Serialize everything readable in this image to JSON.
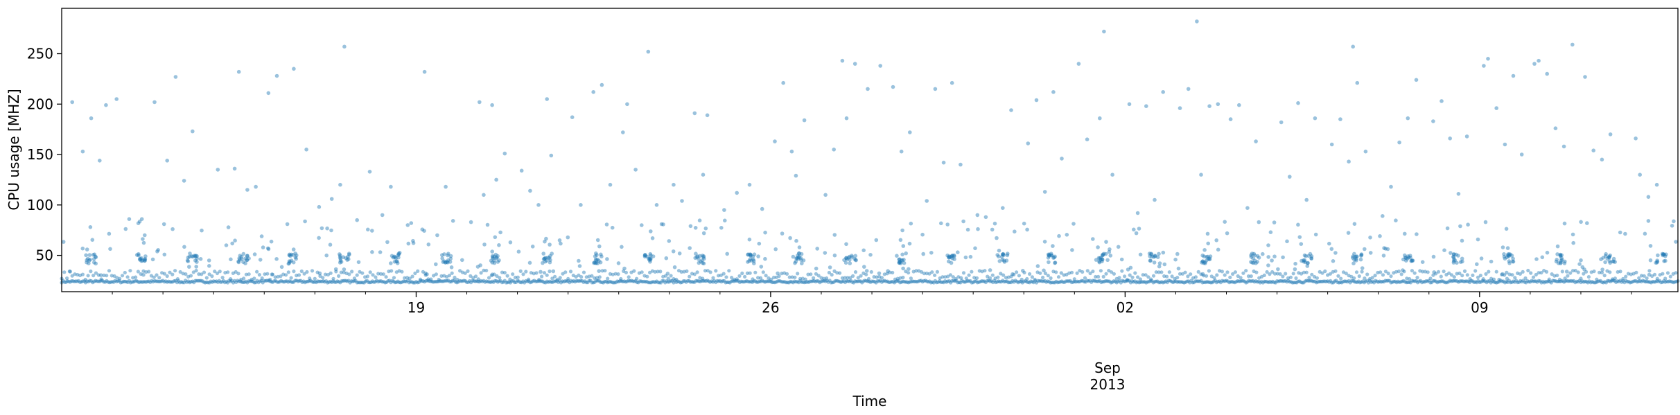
{
  "chart_data": {
    "type": "scatter",
    "title": "",
    "xlabel": "Time",
    "ylabel": "CPU usage [MHZ]",
    "xlim": [
      "2013-08-12T00:00",
      "2013-09-12T22:00"
    ],
    "ylim": [
      14,
      295
    ],
    "grid": false,
    "legend": "none",
    "yticks": [
      50,
      100,
      150,
      200,
      250
    ],
    "xticks_major": [
      {
        "date": "2013-08-19",
        "label": "19"
      },
      {
        "date": "2013-08-26",
        "label": "26"
      },
      {
        "date": "2013-09-02",
        "label": "02"
      },
      {
        "date": "2013-09-09",
        "label": "09"
      }
    ],
    "xaxis_secondary_label": [
      "Sep",
      "2013"
    ],
    "series": [
      {
        "color": "#1f77b4",
        "marker_alpha": 0.45,
        "baseline_value": 24,
        "daily_cluster_value": 47,
        "points": [
          [
            "2013-08-12T05:00",
            202
          ],
          [
            "2013-08-12T10:00",
            153
          ],
          [
            "2013-08-12T14:00",
            186
          ],
          [
            "2013-08-12T18:00",
            144
          ],
          [
            "2013-08-12T21:00",
            199
          ],
          [
            "2013-08-13T02:00",
            205
          ],
          [
            "2013-08-13T08:00",
            86
          ],
          [
            "2013-08-13T14:00",
            86
          ],
          [
            "2013-08-13T20:00",
            202
          ],
          [
            "2013-08-14T02:00",
            144
          ],
          [
            "2013-08-14T06:00",
            227
          ],
          [
            "2013-08-14T10:00",
            124
          ],
          [
            "2013-08-14T14:00",
            173
          ],
          [
            "2013-08-15T02:00",
            135
          ],
          [
            "2013-08-15T06:00",
            60
          ],
          [
            "2013-08-15T10:00",
            136
          ],
          [
            "2013-08-15T12:00",
            232
          ],
          [
            "2013-08-15T16:00",
            115
          ],
          [
            "2013-08-15T20:00",
            118
          ],
          [
            "2013-08-16T02:00",
            211
          ],
          [
            "2013-08-16T06:00",
            228
          ],
          [
            "2013-08-16T14:00",
            235
          ],
          [
            "2013-08-16T20:00",
            155
          ],
          [
            "2013-08-17T02:00",
            98
          ],
          [
            "2013-08-17T08:00",
            106
          ],
          [
            "2013-08-17T12:00",
            120
          ],
          [
            "2013-08-17T14:00",
            257
          ],
          [
            "2013-08-17T20:00",
            85
          ],
          [
            "2013-08-18T02:00",
            133
          ],
          [
            "2013-08-18T08:00",
            90
          ],
          [
            "2013-08-18T12:00",
            118
          ],
          [
            "2013-08-18T20:00",
            80
          ],
          [
            "2013-08-19T04:00",
            232
          ],
          [
            "2013-08-19T10:00",
            70
          ],
          [
            "2013-08-19T14:00",
            118
          ],
          [
            "2013-08-20T02:00",
            83
          ],
          [
            "2013-08-20T06:00",
            202
          ],
          [
            "2013-08-20T08:00",
            110
          ],
          [
            "2013-08-20T12:00",
            199
          ],
          [
            "2013-08-20T14:00",
            125
          ],
          [
            "2013-08-20T18:00",
            151
          ],
          [
            "2013-08-21T02:00",
            134
          ],
          [
            "2013-08-21T06:00",
            114
          ],
          [
            "2013-08-21T10:00",
            100
          ],
          [
            "2013-08-21T14:00",
            205
          ],
          [
            "2013-08-21T16:00",
            149
          ],
          [
            "2013-08-21T20:00",
            65
          ],
          [
            "2013-08-22T02:00",
            187
          ],
          [
            "2013-08-22T06:00",
            100
          ],
          [
            "2013-08-22T12:00",
            212
          ],
          [
            "2013-08-22T16:00",
            219
          ],
          [
            "2013-08-22T20:00",
            120
          ],
          [
            "2013-08-23T02:00",
            172
          ],
          [
            "2013-08-23T04:00",
            200
          ],
          [
            "2013-08-23T08:00",
            135
          ],
          [
            "2013-08-23T14:00",
            252
          ],
          [
            "2013-08-23T18:00",
            100
          ],
          [
            "2013-08-24T02:00",
            120
          ],
          [
            "2013-08-24T06:00",
            104
          ],
          [
            "2013-08-24T12:00",
            191
          ],
          [
            "2013-08-24T16:00",
            130
          ],
          [
            "2013-08-24T18:00",
            189
          ],
          [
            "2013-08-25T02:00",
            95
          ],
          [
            "2013-08-25T08:00",
            112
          ],
          [
            "2013-08-25T14:00",
            120
          ],
          [
            "2013-08-25T20:00",
            96
          ],
          [
            "2013-08-26T02:00",
            163
          ],
          [
            "2013-08-26T06:00",
            221
          ],
          [
            "2013-08-26T10:00",
            153
          ],
          [
            "2013-08-26T12:00",
            129
          ],
          [
            "2013-08-26T16:00",
            184
          ],
          [
            "2013-08-27T02:00",
            110
          ],
          [
            "2013-08-27T06:00",
            155
          ],
          [
            "2013-08-27T10:00",
            243
          ],
          [
            "2013-08-27T12:00",
            186
          ],
          [
            "2013-08-27T16:00",
            240
          ],
          [
            "2013-08-27T22:00",
            215
          ],
          [
            "2013-08-28T04:00",
            238
          ],
          [
            "2013-08-28T10:00",
            217
          ],
          [
            "2013-08-28T14:00",
            153
          ],
          [
            "2013-08-28T18:00",
            172
          ],
          [
            "2013-08-29T02:00",
            104
          ],
          [
            "2013-08-29T06:00",
            215
          ],
          [
            "2013-08-29T10:00",
            142
          ],
          [
            "2013-08-29T14:00",
            221
          ],
          [
            "2013-08-29T18:00",
            140
          ],
          [
            "2013-08-30T02:00",
            90
          ],
          [
            "2013-08-30T06:00",
            88
          ],
          [
            "2013-08-30T14:00",
            97
          ],
          [
            "2013-08-30T18:00",
            194
          ],
          [
            "2013-08-31T02:00",
            161
          ],
          [
            "2013-08-31T06:00",
            204
          ],
          [
            "2013-08-31T10:00",
            113
          ],
          [
            "2013-08-31T14:00",
            212
          ],
          [
            "2013-08-31T18:00",
            146
          ],
          [
            "2013-09-01T02:00",
            240
          ],
          [
            "2013-09-01T06:00",
            165
          ],
          [
            "2013-09-01T12:00",
            186
          ],
          [
            "2013-09-01T14:00",
            272
          ],
          [
            "2013-09-01T18:00",
            130
          ],
          [
            "2013-09-02T02:00",
            200
          ],
          [
            "2013-09-02T06:00",
            92
          ],
          [
            "2013-09-02T10:00",
            198
          ],
          [
            "2013-09-02T14:00",
            105
          ],
          [
            "2013-09-02T18:00",
            212
          ],
          [
            "2013-09-03T02:00",
            196
          ],
          [
            "2013-09-03T06:00",
            215
          ],
          [
            "2013-09-03T10:00",
            282
          ],
          [
            "2013-09-03T12:00",
            130
          ],
          [
            "2013-09-03T16:00",
            198
          ],
          [
            "2013-09-03T20:00",
            200
          ],
          [
            "2013-09-04T02:00",
            185
          ],
          [
            "2013-09-04T06:00",
            199
          ],
          [
            "2013-09-04T10:00",
            97
          ],
          [
            "2013-09-04T14:00",
            163
          ],
          [
            "2013-09-05T02:00",
            182
          ],
          [
            "2013-09-05T06:00",
            128
          ],
          [
            "2013-09-05T10:00",
            201
          ],
          [
            "2013-09-05T14:00",
            105
          ],
          [
            "2013-09-05T18:00",
            186
          ],
          [
            "2013-09-06T02:00",
            160
          ],
          [
            "2013-09-06T06:00",
            185
          ],
          [
            "2013-09-06T10:00",
            143
          ],
          [
            "2013-09-06T12:00",
            257
          ],
          [
            "2013-09-06T14:00",
            221
          ],
          [
            "2013-09-06T18:00",
            153
          ],
          [
            "2013-09-07T02:00",
            89
          ],
          [
            "2013-09-07T06:00",
            118
          ],
          [
            "2013-09-07T10:00",
            162
          ],
          [
            "2013-09-07T14:00",
            186
          ],
          [
            "2013-09-07T18:00",
            224
          ],
          [
            "2013-09-08T02:00",
            183
          ],
          [
            "2013-09-08T06:00",
            203
          ],
          [
            "2013-09-08T10:00",
            166
          ],
          [
            "2013-09-08T14:00",
            111
          ],
          [
            "2013-09-08T18:00",
            168
          ],
          [
            "2013-09-09T02:00",
            238
          ],
          [
            "2013-09-09T04:00",
            245
          ],
          [
            "2013-09-09T08:00",
            196
          ],
          [
            "2013-09-09T12:00",
            160
          ],
          [
            "2013-09-09T16:00",
            228
          ],
          [
            "2013-09-09T20:00",
            150
          ],
          [
            "2013-09-10T02:00",
            240
          ],
          [
            "2013-09-10T04:00",
            243
          ],
          [
            "2013-09-10T08:00",
            230
          ],
          [
            "2013-09-10T12:00",
            176
          ],
          [
            "2013-09-10T16:00",
            158
          ],
          [
            "2013-09-10T20:00",
            259
          ],
          [
            "2013-09-11T02:00",
            227
          ],
          [
            "2013-09-11T06:00",
            154
          ],
          [
            "2013-09-11T10:00",
            145
          ],
          [
            "2013-09-11T14:00",
            170
          ],
          [
            "2013-09-12T02:00",
            166
          ],
          [
            "2013-09-12T04:00",
            130
          ],
          [
            "2013-09-12T08:00",
            108
          ],
          [
            "2013-09-12T12:00",
            120
          ]
        ]
      }
    ]
  }
}
